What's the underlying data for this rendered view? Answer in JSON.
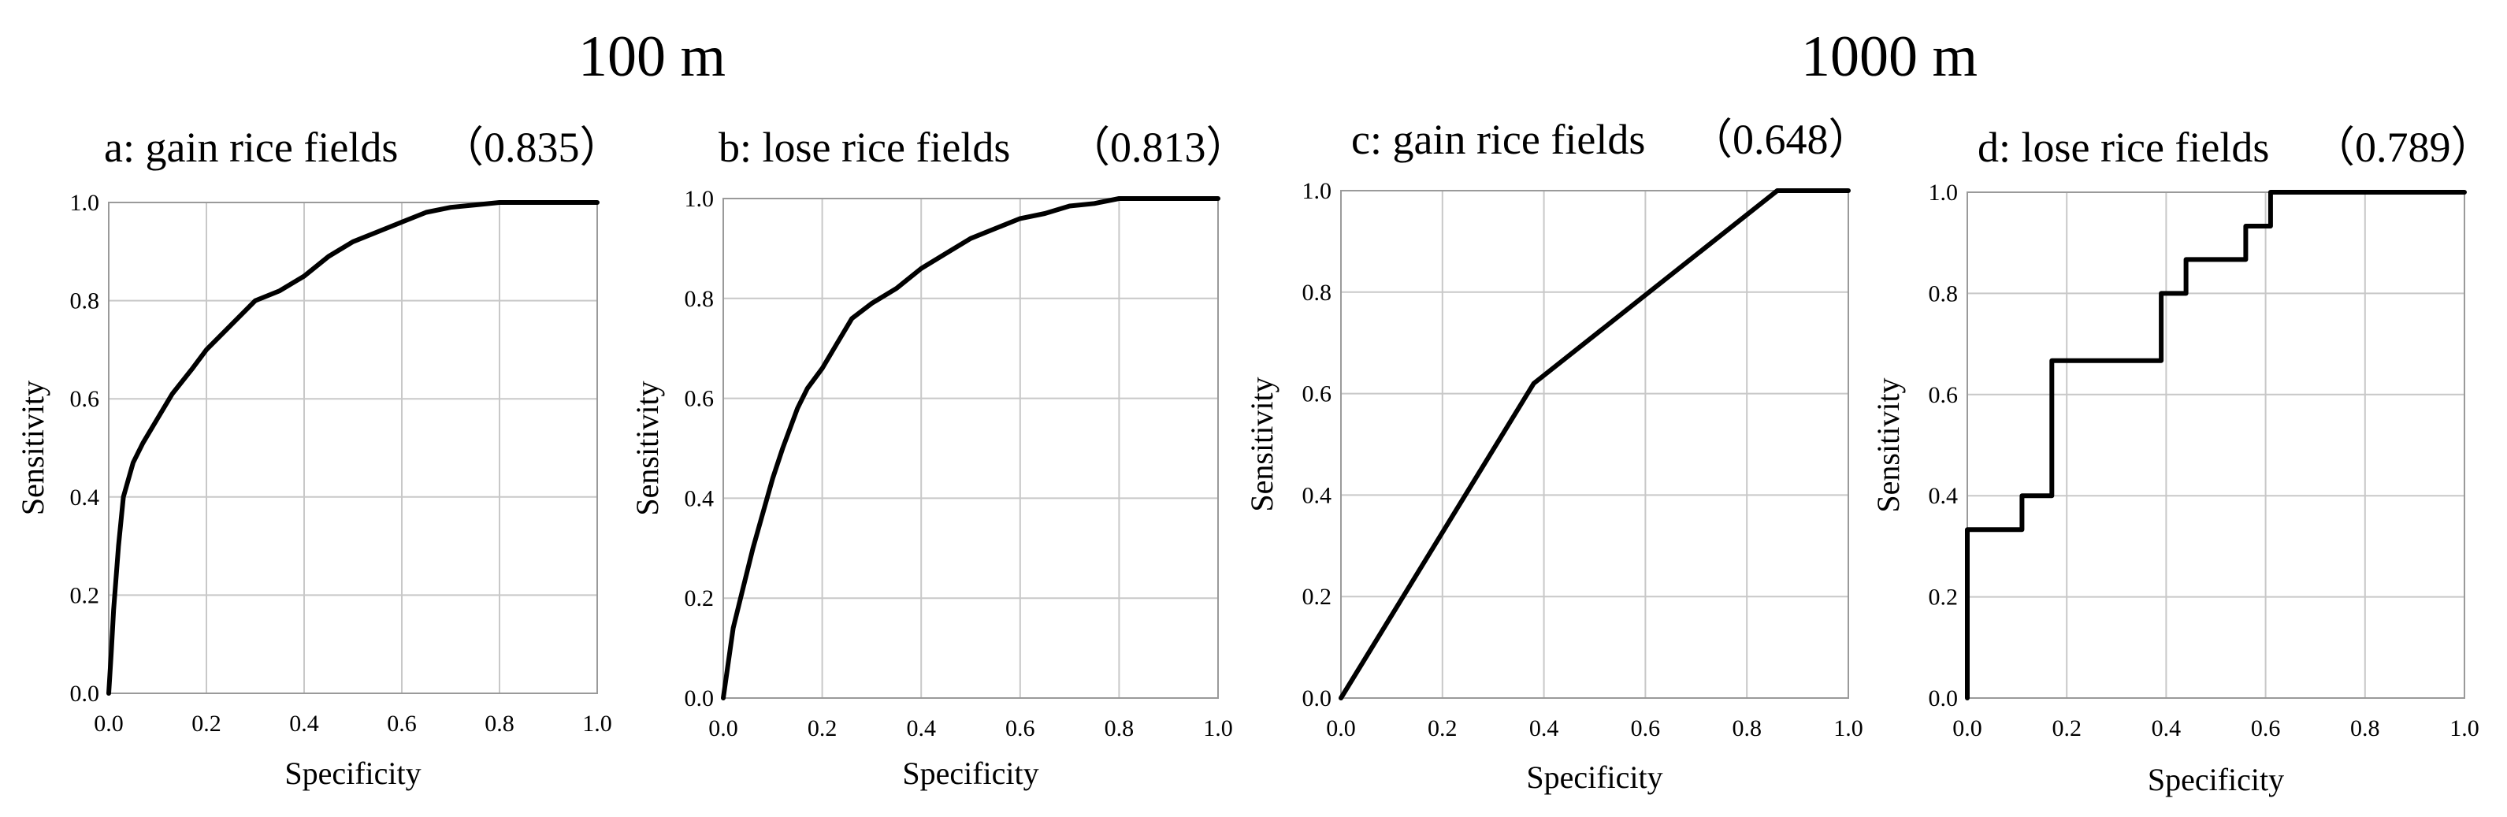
{
  "groups": [
    {
      "title": "100 m"
    },
    {
      "title": "1000 m"
    }
  ],
  "chart_data": [
    {
      "type": "line",
      "title": "a: gain rice fields",
      "auc_label": "（0.835）",
      "xlabel": "Specificity",
      "ylabel": "Sensitivity",
      "xlim": [
        0,
        1
      ],
      "ylim": [
        0,
        1
      ],
      "xticks": [
        "0.0",
        "0.2",
        "0.4",
        "0.6",
        "0.8",
        "1.0"
      ],
      "yticks": [
        "0.0",
        "0.2",
        "0.4",
        "0.6",
        "0.8",
        "1.0"
      ],
      "grid": true,
      "x": [
        0,
        0.005,
        0.01,
        0.02,
        0.03,
        0.05,
        0.07,
        0.1,
        0.13,
        0.17,
        0.2,
        0.25,
        0.3,
        0.35,
        0.4,
        0.45,
        0.5,
        0.55,
        0.6,
        0.65,
        0.7,
        0.75,
        0.8,
        0.85,
        0.9,
        0.95,
        1.0
      ],
      "y": [
        0,
        0.08,
        0.17,
        0.3,
        0.4,
        0.47,
        0.51,
        0.56,
        0.61,
        0.66,
        0.7,
        0.75,
        0.8,
        0.82,
        0.85,
        0.89,
        0.92,
        0.94,
        0.96,
        0.98,
        0.99,
        0.995,
        1.0,
        1.0,
        1.0,
        1.0,
        1.0
      ]
    },
    {
      "type": "line",
      "title": "b: lose rice fields",
      "auc_label": "（0.813）",
      "xlabel": "Specificity",
      "ylabel": "Sensitivity",
      "xlim": [
        0,
        1
      ],
      "ylim": [
        0,
        1
      ],
      "xticks": [
        "0.0",
        "0.2",
        "0.4",
        "0.6",
        "0.8",
        "1.0"
      ],
      "yticks": [
        "0.0",
        "0.2",
        "0.4",
        "0.6",
        "0.8",
        "1.0"
      ],
      "grid": true,
      "x": [
        0,
        0.01,
        0.02,
        0.04,
        0.06,
        0.08,
        0.1,
        0.12,
        0.15,
        0.17,
        0.2,
        0.23,
        0.26,
        0.3,
        0.35,
        0.4,
        0.45,
        0.5,
        0.55,
        0.6,
        0.65,
        0.7,
        0.75,
        0.8,
        0.85,
        0.9,
        1.0
      ],
      "y": [
        0,
        0.07,
        0.14,
        0.22,
        0.3,
        0.37,
        0.44,
        0.5,
        0.58,
        0.62,
        0.66,
        0.71,
        0.76,
        0.79,
        0.82,
        0.86,
        0.89,
        0.92,
        0.94,
        0.96,
        0.97,
        0.985,
        0.99,
        1.0,
        1.0,
        1.0,
        1.0
      ]
    },
    {
      "type": "line",
      "title": "c: gain rice fields",
      "auc_label": "（0.648）",
      "xlabel": "Specificity",
      "ylabel": "Sensitivity",
      "xlim": [
        0,
        1
      ],
      "ylim": [
        0,
        1
      ],
      "xticks": [
        "0.0",
        "0.2",
        "0.4",
        "0.6",
        "0.8",
        "1.0"
      ],
      "yticks": [
        "0.0",
        "0.2",
        "0.4",
        "0.6",
        "0.8",
        "1.0"
      ],
      "grid": true,
      "x": [
        0,
        0.38,
        0.86,
        1.0
      ],
      "y": [
        0,
        0.62,
        1.0,
        1.0
      ]
    },
    {
      "type": "line",
      "title": "d: lose rice fields",
      "auc_label": "（0.789）",
      "xlabel": "Specificity",
      "ylabel": "Sensitivity",
      "xlim": [
        0,
        1
      ],
      "ylim": [
        0,
        1
      ],
      "xticks": [
        "0.0",
        "0.2",
        "0.4",
        "0.6",
        "0.8",
        "1.0"
      ],
      "yticks": [
        "0.0",
        "0.2",
        "0.4",
        "0.6",
        "0.8",
        "1.0"
      ],
      "grid": true,
      "x": [
        0,
        0,
        0.11,
        0.11,
        0.17,
        0.17,
        0.39,
        0.39,
        0.44,
        0.44,
        0.56,
        0.56,
        0.61,
        0.61,
        1.0
      ],
      "y": [
        0,
        0.333,
        0.333,
        0.4,
        0.4,
        0.667,
        0.667,
        0.8,
        0.8,
        0.867,
        0.867,
        0.933,
        0.933,
        1.0,
        1.0
      ]
    }
  ]
}
